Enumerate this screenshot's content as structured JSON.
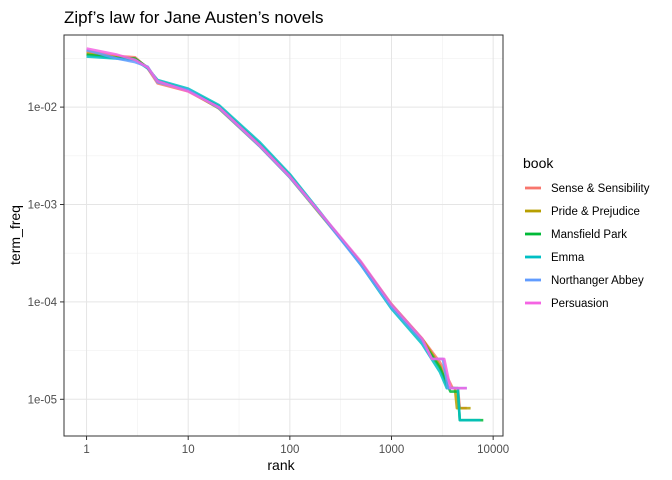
{
  "chart_data": {
    "type": "line",
    "title": "Zipf’s law for Jane Austen’s novels",
    "xlabel": "rank",
    "ylabel": "term_freq",
    "x_scale": "log10",
    "y_scale": "log10",
    "xlim": [
      0.6,
      12500
    ],
    "ylim": [
      4.2e-06,
      0.055
    ],
    "x_ticks": [
      {
        "value": 1,
        "label": "1"
      },
      {
        "value": 10,
        "label": "10"
      },
      {
        "value": 100,
        "label": "100"
      },
      {
        "value": 1000,
        "label": "1000"
      },
      {
        "value": 10000,
        "label": "10000"
      }
    ],
    "y_ticks": [
      {
        "value": 1e-05,
        "label": "1e-05"
      },
      {
        "value": 0.0001,
        "label": "1e-04"
      },
      {
        "value": 0.001,
        "label": "1e-03"
      },
      {
        "value": 0.01,
        "label": "1e-02"
      }
    ],
    "grid": true,
    "legend": {
      "title": "book",
      "position": "right"
    },
    "series": [
      {
        "name": "Sense & Sensibility",
        "color": "#F8766D",
        "points": [
          [
            1,
            0.0375
          ],
          [
            2,
            0.0335
          ],
          [
            3,
            0.0325
          ],
          [
            4,
            0.025
          ],
          [
            5,
            0.0175
          ],
          [
            10,
            0.0145
          ],
          [
            20,
            0.0098
          ],
          [
            50,
            0.0041
          ],
          [
            100,
            0.00195
          ],
          [
            200,
            0.00081
          ],
          [
            500,
            0.000255
          ],
          [
            1000,
            9.5e-05
          ],
          [
            2000,
            4.2e-05
          ],
          [
            3000,
            2.4e-05
          ],
          [
            4000,
            1.3e-05
          ],
          [
            4500,
            1.3e-05
          ],
          [
            4700,
            8.1e-06
          ],
          [
            5500,
            8.1e-06
          ]
        ]
      },
      {
        "name": "Pride & Prejudice",
        "color": "#B79F00",
        "points": [
          [
            1,
            0.0355
          ],
          [
            2,
            0.0325
          ],
          [
            3,
            0.0315
          ],
          [
            4,
            0.0255
          ],
          [
            5,
            0.0185
          ],
          [
            10,
            0.0148
          ],
          [
            20,
            0.0097
          ],
          [
            50,
            0.004
          ],
          [
            100,
            0.0019
          ],
          [
            200,
            0.00079
          ],
          [
            500,
            0.00025
          ],
          [
            1000,
            9.4e-05
          ],
          [
            2000,
            4.2e-05
          ],
          [
            3000,
            2.2e-05
          ],
          [
            3600,
            1.3e-05
          ],
          [
            4200,
            1.3e-05
          ],
          [
            4400,
            8.1e-06
          ],
          [
            6000,
            8.1e-06
          ]
        ]
      },
      {
        "name": "Mansfield Park",
        "color": "#00BA38",
        "points": [
          [
            1,
            0.0345
          ],
          [
            2,
            0.032
          ],
          [
            3,
            0.0315
          ],
          [
            4,
            0.0255
          ],
          [
            5,
            0.0185
          ],
          [
            10,
            0.015
          ],
          [
            20,
            0.0102
          ],
          [
            50,
            0.0042
          ],
          [
            100,
            0.00198
          ],
          [
            200,
            0.00081
          ],
          [
            500,
            0.00025
          ],
          [
            1000,
            9.1e-05
          ],
          [
            2000,
            4e-05
          ],
          [
            3000,
            2.1e-05
          ],
          [
            3800,
            1.2e-05
          ],
          [
            4500,
            1.2e-05
          ],
          [
            4700,
            6.1e-06
          ],
          [
            8000,
            6.1e-06
          ]
        ]
      },
      {
        "name": "Emma",
        "color": "#00BFC4",
        "points": [
          [
            1,
            0.033
          ],
          [
            2,
            0.0315
          ],
          [
            3,
            0.0305
          ],
          [
            4,
            0.025
          ],
          [
            5,
            0.019
          ],
          [
            10,
            0.0155
          ],
          [
            20,
            0.0105
          ],
          [
            50,
            0.0044
          ],
          [
            100,
            0.00205
          ],
          [
            200,
            0.00083
          ],
          [
            500,
            0.00024
          ],
          [
            1000,
            8.5e-05
          ],
          [
            2000,
            3.7e-05
          ],
          [
            3000,
            1.9e-05
          ],
          [
            3500,
            1.3e-05
          ],
          [
            4500,
            1.3e-05
          ],
          [
            4700,
            6.1e-06
          ],
          [
            7500,
            6.1e-06
          ]
        ]
      },
      {
        "name": "Northanger Abbey",
        "color": "#619CFF",
        "points": [
          [
            1,
            0.0385
          ],
          [
            2,
            0.0315
          ],
          [
            3,
            0.029
          ],
          [
            4,
            0.026
          ],
          [
            5,
            0.018
          ],
          [
            10,
            0.015
          ],
          [
            20,
            0.0098
          ],
          [
            50,
            0.004
          ],
          [
            100,
            0.0019
          ],
          [
            200,
            0.0008
          ],
          [
            500,
            0.00024
          ],
          [
            1000,
            8.9e-05
          ],
          [
            2000,
            4e-05
          ],
          [
            2500,
            2.6e-05
          ],
          [
            3200,
            2.6e-05
          ],
          [
            3600,
            1.3e-05
          ],
          [
            5500,
            1.3e-05
          ]
        ]
      },
      {
        "name": "Persuasion",
        "color": "#F564E3",
        "points": [
          [
            1,
            0.04
          ],
          [
            2,
            0.0345
          ],
          [
            3,
            0.0305
          ],
          [
            4,
            0.0255
          ],
          [
            5,
            0.0185
          ],
          [
            10,
            0.0145
          ],
          [
            20,
            0.01
          ],
          [
            50,
            0.0041
          ],
          [
            100,
            0.00195
          ],
          [
            200,
            0.00082
          ],
          [
            500,
            0.00026
          ],
          [
            1000,
            9.4e-05
          ],
          [
            2000,
            4.2e-05
          ],
          [
            2500,
            2.6e-05
          ],
          [
            3300,
            2.6e-05
          ],
          [
            3800,
            1.3e-05
          ],
          [
            5500,
            1.3e-05
          ]
        ]
      }
    ]
  }
}
